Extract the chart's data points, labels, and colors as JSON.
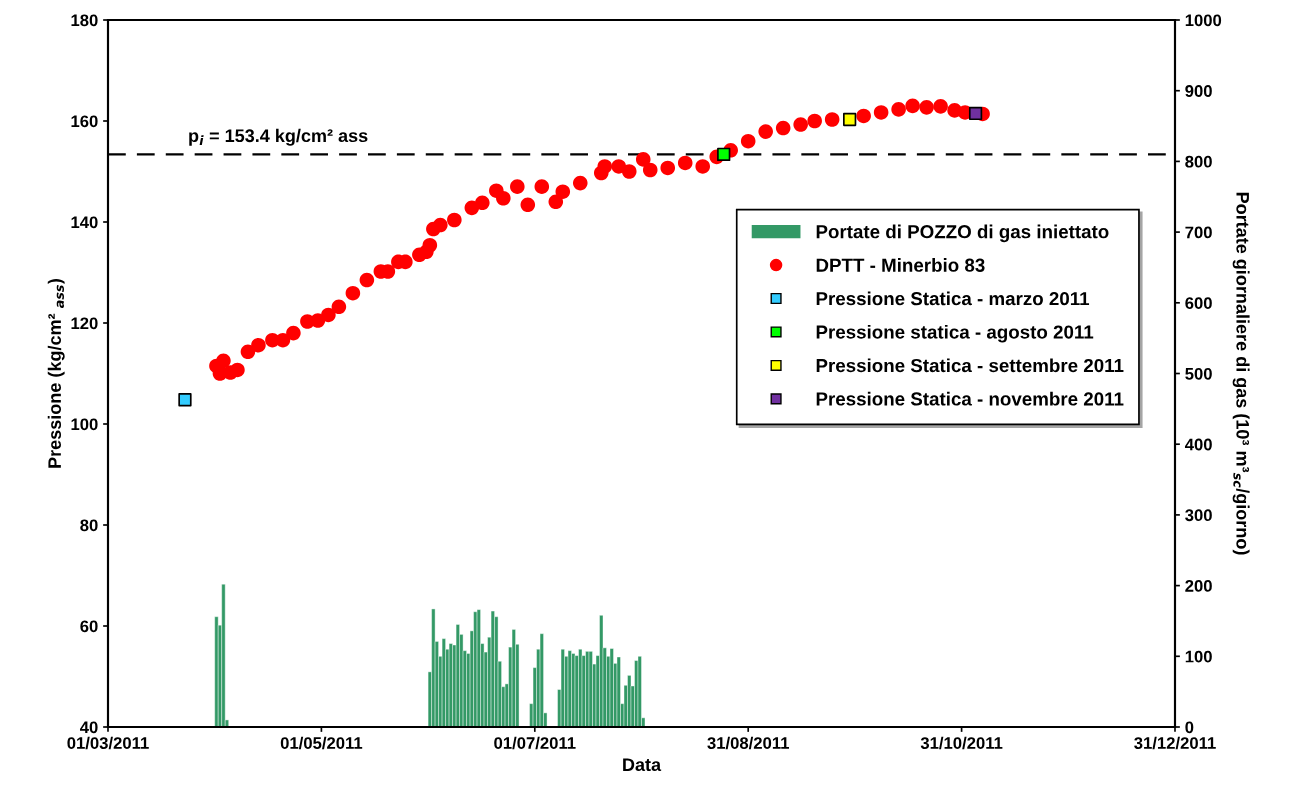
{
  "chart_data": {
    "type": "scatter",
    "xlabel": "Data",
    "ylabel": "Pressione (kg/cm² $_{ass}$)",
    "y2label": "Portate giornaliere di gas (10³ m³$_{sc}$/giorno)",
    "xlim": [
      "2011-03-01",
      "2011-12-31"
    ],
    "xticks": [
      {
        "value": "2011-03-01",
        "label": "01/03/2011"
      },
      {
        "value": "2011-05-01",
        "label": "01/05/2011"
      },
      {
        "value": "2011-07-01",
        "label": "01/07/2011"
      },
      {
        "value": "2011-08-31",
        "label": "31/08/2011"
      },
      {
        "value": "2011-10-31",
        "label": "31/10/2011"
      },
      {
        "value": "2011-12-31",
        "label": "31/12/2011"
      }
    ],
    "ylim": [
      40,
      180
    ],
    "yticks": [
      40,
      60,
      80,
      100,
      120,
      140,
      160,
      180
    ],
    "y2lim": [
      0,
      1000
    ],
    "y2ticks": [
      0,
      100,
      200,
      300,
      400,
      500,
      600,
      700,
      800,
      900,
      1000
    ],
    "legend": "right",
    "ref_lines": [
      {
        "axis": "y",
        "value": 153.4,
        "label": "p$_{i}$ = 153.4 kg/cm² ass",
        "color": "#000000",
        "line_style": "dashed"
      }
    ],
    "series": [
      {
        "name": "Portate di POZZO di gas iniettato",
        "type": "bar",
        "axis": "y2",
        "color": "#339966",
        "x": [
          "2011-04-01",
          "2011-04-02",
          "2011-04-03",
          "2011-04-04",
          "2011-06-01",
          "2011-06-02",
          "2011-06-03",
          "2011-06-04",
          "2011-06-05",
          "2011-06-06",
          "2011-06-07",
          "2011-06-08",
          "2011-06-09",
          "2011-06-10",
          "2011-06-11",
          "2011-06-12",
          "2011-06-13",
          "2011-06-14",
          "2011-06-15",
          "2011-06-16",
          "2011-06-17",
          "2011-06-18",
          "2011-06-19",
          "2011-06-20",
          "2011-06-21",
          "2011-06-22",
          "2011-06-23",
          "2011-06-24",
          "2011-06-25",
          "2011-06-26",
          "2011-06-30",
          "2011-07-01",
          "2011-07-02",
          "2011-07-03",
          "2011-07-04",
          "2011-07-08",
          "2011-07-09",
          "2011-07-10",
          "2011-07-11",
          "2011-07-12",
          "2011-07-13",
          "2011-07-14",
          "2011-07-15",
          "2011-07-16",
          "2011-07-17",
          "2011-07-18",
          "2011-07-19",
          "2011-07-20",
          "2011-07-21",
          "2011-07-22",
          "2011-07-23",
          "2011-07-24",
          "2011-07-25",
          "2011-07-26",
          "2011-07-27",
          "2011-07-28",
          "2011-07-29",
          "2011-07-30",
          "2011-07-31",
          "2011-08-01"
        ],
        "values": [
          156,
          144,
          202,
          10,
          78,
          167,
          121,
          100,
          125,
          110,
          118,
          116,
          145,
          131,
          108,
          104,
          136,
          163,
          166,
          118,
          106,
          127,
          164,
          156,
          93,
          57,
          61,
          113,
          138,
          117,
          33,
          84,
          110,
          132,
          20,
          53,
          110,
          100,
          108,
          104,
          101,
          110,
          101,
          107,
          107,
          89,
          101,
          158,
          112,
          100,
          111,
          90,
          99,
          33,
          59,
          73,
          58,
          94,
          100,
          13
        ]
      },
      {
        "name": "DPTT - Minerbio 83",
        "marker": "circle",
        "color": "#ff0000",
        "x": [
          "2011-04-01",
          "2011-04-02",
          "2011-04-03",
          "2011-04-05",
          "2011-04-07",
          "2011-04-10",
          "2011-04-13",
          "2011-04-17",
          "2011-04-20",
          "2011-04-23",
          "2011-04-27",
          "2011-04-30",
          "2011-05-03",
          "2011-05-06",
          "2011-05-10",
          "2011-05-14",
          "2011-05-18",
          "2011-05-20",
          "2011-05-23",
          "2011-05-25",
          "2011-05-29",
          "2011-05-31",
          "2011-06-01",
          "2011-06-02",
          "2011-06-04",
          "2011-06-08",
          "2011-06-13",
          "2011-06-16",
          "2011-06-20",
          "2011-06-22",
          "2011-06-26",
          "2011-06-29",
          "2011-07-03",
          "2011-07-07",
          "2011-07-09",
          "2011-07-14",
          "2011-07-20",
          "2011-07-21",
          "2011-07-25",
          "2011-07-28",
          "2011-08-01",
          "2011-08-03",
          "2011-08-08",
          "2011-08-13",
          "2011-08-18",
          "2011-08-22",
          "2011-08-26",
          "2011-08-31",
          "2011-09-05",
          "2011-09-10",
          "2011-09-15",
          "2011-09-19",
          "2011-09-24",
          "2011-09-29",
          "2011-10-03",
          "2011-10-08",
          "2011-10-13",
          "2011-10-17",
          "2011-10-21",
          "2011-10-25",
          "2011-10-29",
          "2011-11-01",
          "2011-11-06"
        ],
        "values": [
          111.5,
          110,
          112.5,
          110.2,
          110.7,
          114.3,
          115.6,
          116.6,
          116.6,
          118,
          120.3,
          120.5,
          121.6,
          123.2,
          125.9,
          128.5,
          130.2,
          130.2,
          132.1,
          132.1,
          133.5,
          134.1,
          135.4,
          138.6,
          139.4,
          140.4,
          142.8,
          143.8,
          146.2,
          144.7,
          147,
          143.4,
          147,
          144,
          146,
          147.7,
          149.7,
          151,
          151,
          150,
          152.4,
          150.3,
          150.7,
          151.7,
          151,
          152.9,
          154.2,
          156,
          157.9,
          158.6,
          159.3,
          160,
          160.3,
          null,
          161,
          161.7,
          162.3,
          163,
          162.7,
          162.9,
          162.1,
          161.7,
          161.4
        ]
      },
      {
        "name": "Pressione Statica - marzo 2011",
        "marker": "square",
        "color": "#33ccff",
        "x": [
          "2011-03-23"
        ],
        "values": [
          104.8
        ]
      },
      {
        "name": "Pressione statica - agosto 2011",
        "marker": "square",
        "color": "#00ff00",
        "x": [
          "2011-08-24"
        ],
        "values": [
          153.4
        ]
      },
      {
        "name": "Pressione Statica - settembre 2011",
        "marker": "square",
        "color": "#ffff00",
        "x": [
          "2011-09-29"
        ],
        "values": [
          160.3
        ]
      },
      {
        "name": "Pressione Statica - novembre 2011",
        "marker": "square",
        "color": "#7030a0",
        "x": [
          "2011-11-04"
        ],
        "values": [
          161.5
        ]
      }
    ]
  }
}
